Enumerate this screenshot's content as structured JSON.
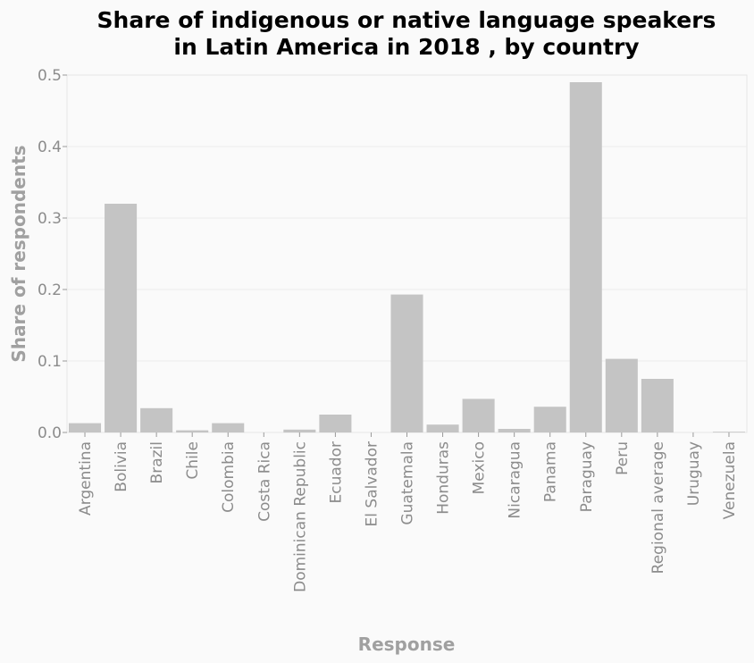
{
  "chart_data": {
    "type": "bar",
    "title_lines": [
      "Share of indigenous or native language speakers",
      "in Latin America in 2018 , by country"
    ],
    "xlabel": "Response",
    "ylabel": "Share of respondents",
    "ylim": [
      0,
      0.5
    ],
    "yticks": [
      "0.0",
      "0.1",
      "0.2",
      "0.3",
      "0.4",
      "0.5"
    ],
    "grid": true,
    "bar_color": "#c4c4c4",
    "categories": [
      "Argentina",
      "Bolivia",
      "Brazil",
      "Chile",
      "Colombia",
      "Costa Rica",
      "Dominican Republic",
      "Ecuador",
      "El Salvador",
      "Guatemala",
      "Honduras",
      "Mexico",
      "Nicaragua",
      "Panama",
      "Paraguay",
      "Peru",
      "Regional average",
      "Uruguay",
      "Venezuela"
    ],
    "values": [
      0.013,
      0.32,
      0.034,
      0.003,
      0.013,
      0.0,
      0.004,
      0.025,
      0.0,
      0.193,
      0.011,
      0.047,
      0.005,
      0.036,
      0.49,
      0.103,
      0.075,
      0.0,
      0.001
    ]
  }
}
